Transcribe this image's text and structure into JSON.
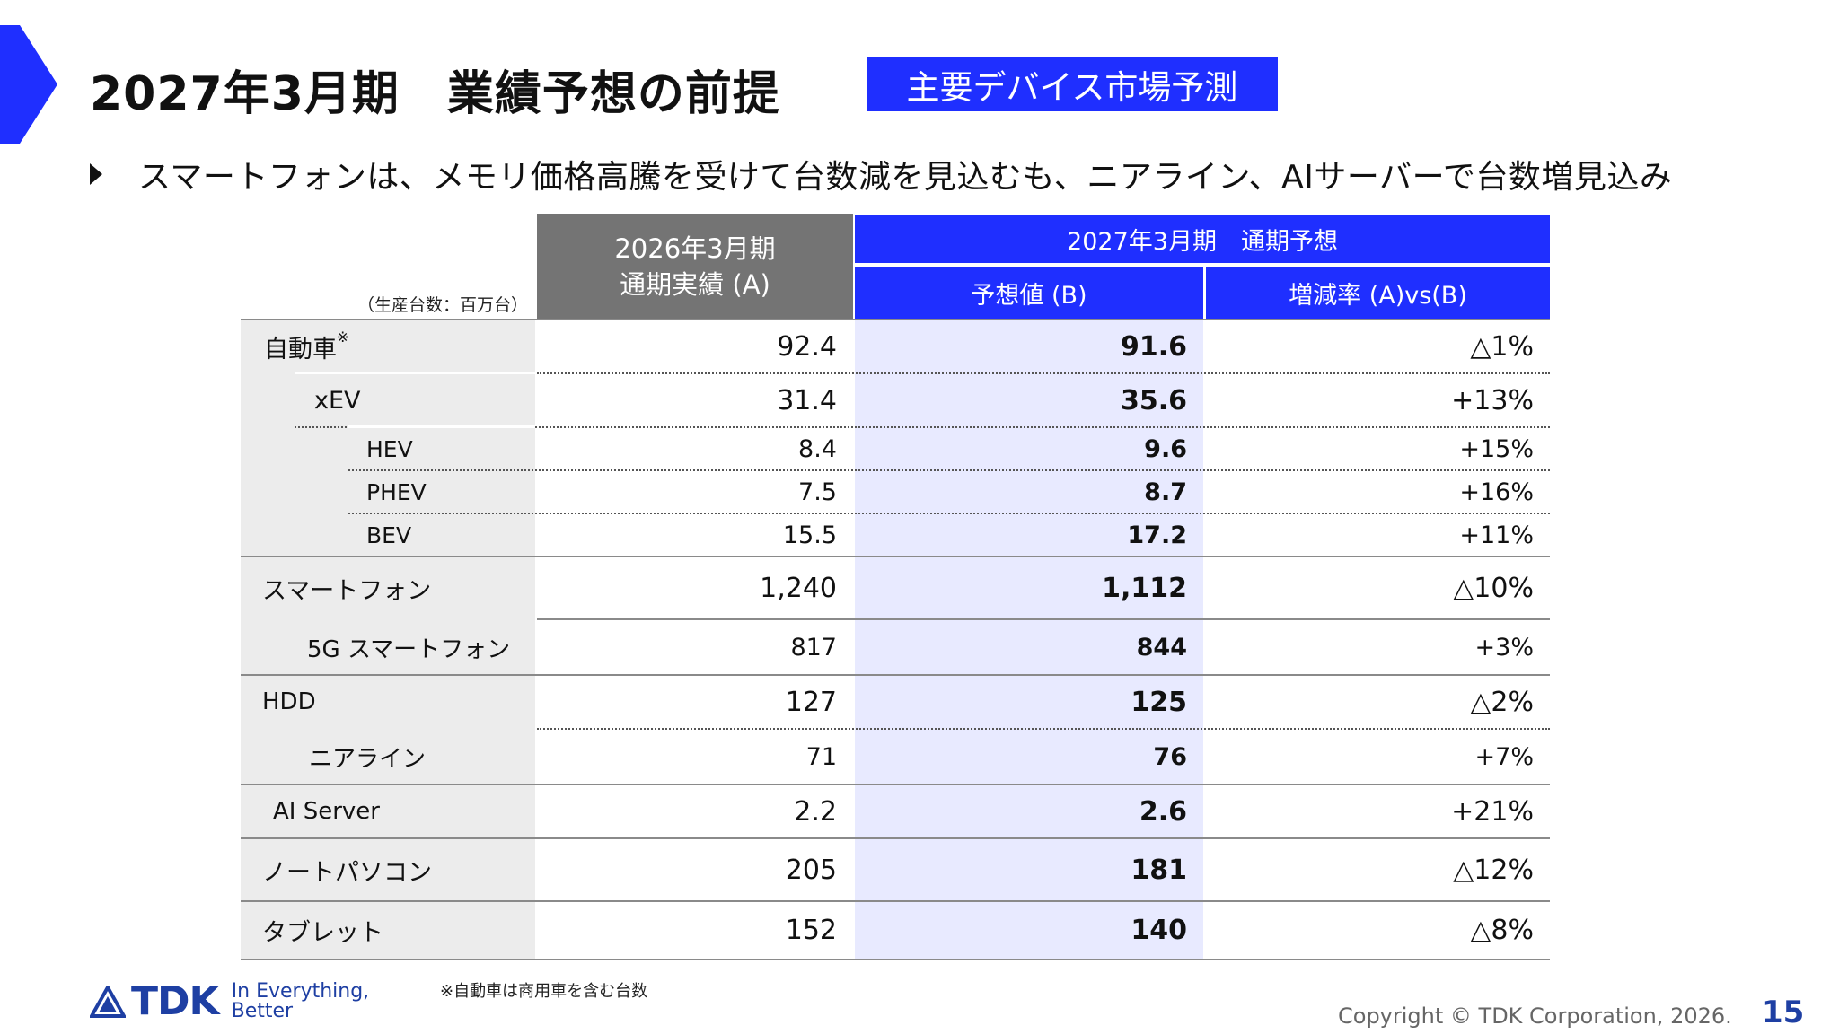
{
  "title": "2027年3月期　業績予想の前提",
  "badge": "主要デバイス市場予測",
  "bullet": "スマートフォンは、メモリ価格高騰を受けて台数減を見込むも、ニアライン、AIサーバーで台数増見込み",
  "table": {
    "unit_note": "（生産台数：百万台）",
    "col_a_header": [
      "2026年3月期",
      "通期実績 (A)"
    ],
    "group_header": "2027年3月期　通期予想",
    "col_b_header": "予想値 (B)",
    "col_c_header": "増減率 (A)vs(B)",
    "rows": [
      {
        "label": "自動車",
        "sup": "※",
        "a": "92.4",
        "b": "91.6",
        "c": "△1%"
      },
      {
        "label": "xEV",
        "a": "31.4",
        "b": "35.6",
        "c": "+13%"
      },
      {
        "label": "HEV",
        "a": "8.4",
        "b": "9.6",
        "c": "+15%"
      },
      {
        "label": "PHEV",
        "a": "7.5",
        "b": "8.7",
        "c": "+16%"
      },
      {
        "label": "BEV",
        "a": "15.5",
        "b": "17.2",
        "c": "+11%"
      },
      {
        "label": "スマートフォン",
        "a": "1,240",
        "b": "1,112",
        "c": "△10%"
      },
      {
        "label": "5G スマートフォン",
        "a": "817",
        "b": "844",
        "c": "+3%"
      },
      {
        "label": "HDD",
        "a": "127",
        "b": "125",
        "c": "△2%"
      },
      {
        "label": "ニアライン",
        "a": "71",
        "b": "76",
        "c": "+7%"
      },
      {
        "label": "AI Server",
        "a": "2.2",
        "b": "2.6",
        "c": "+21%"
      },
      {
        "label": "ノートパソコン",
        "a": "205",
        "b": "181",
        "c": "△12%"
      },
      {
        "label": "タブレット",
        "a": "152",
        "b": "140",
        "c": "△8%"
      }
    ]
  },
  "footer": {
    "logo_text": "TDK",
    "slogan": [
      "In Everything,",
      "Better"
    ],
    "note": "※自動車は商用車を含む台数",
    "copyright": "Copyright © TDK Corporation, 2026.",
    "page_number": "15"
  },
  "colors": {
    "accent_blue": "#1f2fff",
    "header_gray": "#747474",
    "label_gray": "#ececec",
    "column_b_tint": "#e8eaff",
    "logo_blue": "#1e3fa3"
  }
}
